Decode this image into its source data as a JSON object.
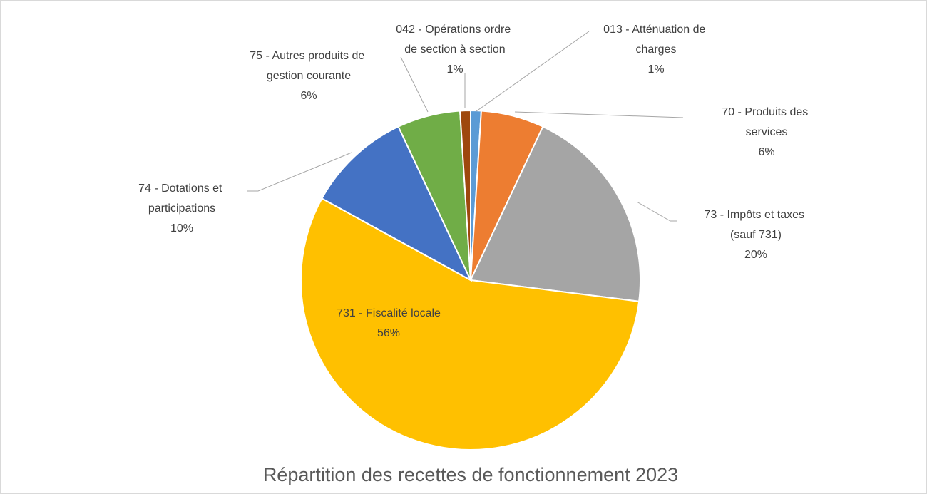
{
  "chart_data": {
    "type": "pie",
    "title": "Répartition des recettes de fonctionnement 2023",
    "categories": [
      "013 - Atténuation de charges",
      "70 - Produits des services",
      "73 - Impôts et taxes (sauf 731)",
      "731 - Fiscalité locale",
      "74 - Dotations et participations",
      "75 - Autres produits de gestion courante",
      "042 - Opérations ordre de section à section"
    ],
    "values": [
      1,
      6,
      20,
      56,
      10,
      6,
      1
    ],
    "value_labels": [
      "1%",
      "6%",
      "20%",
      "56%",
      "10%",
      "6%",
      "1%"
    ],
    "colors": [
      "#5b9bd5",
      "#ed7d31",
      "#a5a5a5",
      "#ffc000",
      "#4472c4",
      "#70ad47",
      "#9e480e"
    ]
  }
}
